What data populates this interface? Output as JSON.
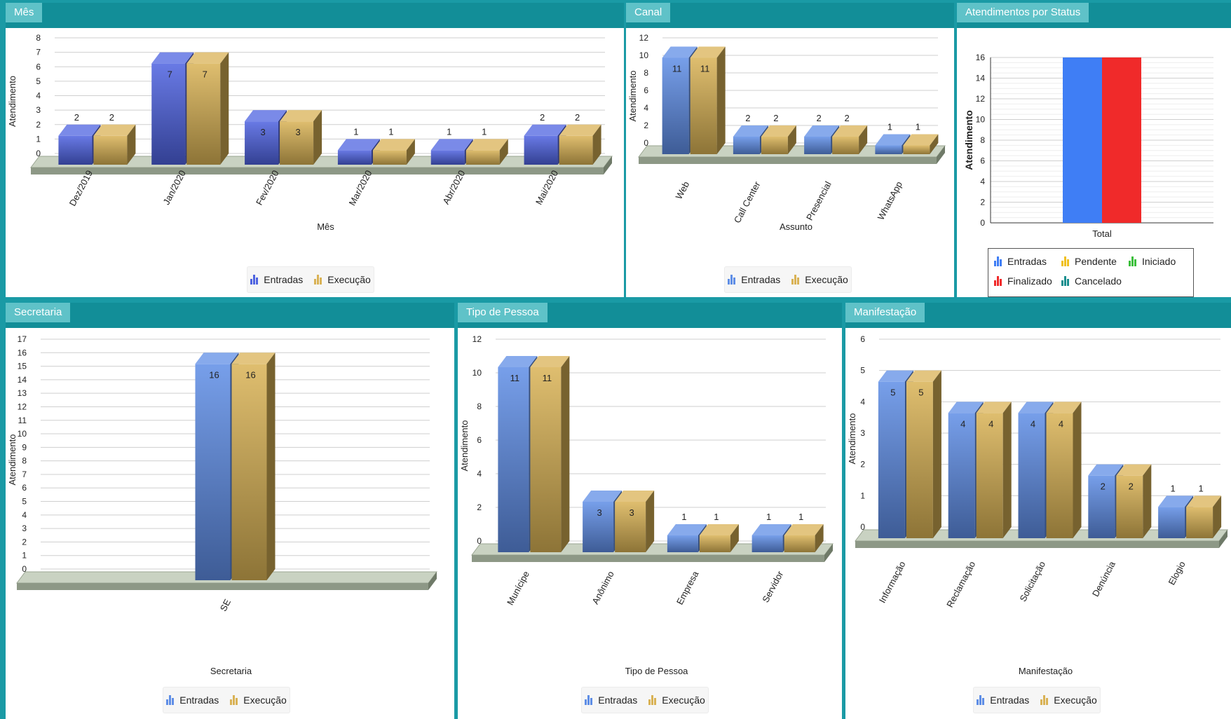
{
  "colors": {
    "entradas": "#4e63e0",
    "execucao": "#d9b255",
    "entradas_light": "#5f8ee6",
    "status_entradas": "#3f7ef5",
    "status_finalizado": "#f02a2a",
    "pendente": "#f0c020",
    "iniciado": "#3cbf3c",
    "cancelado": "#1a8f8f"
  },
  "panels": {
    "mes": {
      "title": "Mês"
    },
    "canal": {
      "title": "Canal"
    },
    "status": {
      "title": "Atendimentos por Status"
    },
    "secretaria": {
      "title": "Secretaria"
    },
    "tipo": {
      "title": "Tipo de Pessoa"
    },
    "manifestacao": {
      "title": "Manifestação"
    }
  },
  "legend": {
    "entradas": "Entradas",
    "execucao": "Execução"
  },
  "status_legend": {
    "entradas": "Entradas",
    "pendente": "Pendente",
    "iniciado": "Iniciado",
    "finalizado": "Finalizado",
    "cancelado": "Cancelado"
  },
  "chart_data": [
    {
      "id": "mes",
      "type": "bar",
      "title": "Mês",
      "xlabel": "Mês",
      "ylabel": "Atendimento",
      "ylim": [
        0,
        8
      ],
      "yticks": [
        0,
        1,
        2,
        3,
        4,
        5,
        6,
        7,
        8
      ],
      "categories": [
        "Dez/2019",
        "Jan/2020",
        "Fev/2020",
        "Mar/2020",
        "Abr/2020",
        "Mai/2020"
      ],
      "series": [
        {
          "name": "Entradas",
          "values": [
            2,
            7,
            3,
            1,
            1,
            2
          ]
        },
        {
          "name": "Execução",
          "values": [
            2,
            7,
            3,
            1,
            1,
            2
          ]
        }
      ],
      "legend": "bottom"
    },
    {
      "id": "canal",
      "type": "bar",
      "title": "Canal",
      "xlabel": "Assunto",
      "ylabel": "Atendimento",
      "ylim": [
        0,
        12
      ],
      "yticks": [
        0,
        2,
        4,
        6,
        8,
        10,
        12
      ],
      "categories": [
        "Web",
        "Call Center",
        "Presencial",
        "WhatsApp"
      ],
      "series": [
        {
          "name": "Entradas",
          "values": [
            11,
            2,
            2,
            1
          ]
        },
        {
          "name": "Execução",
          "values": [
            11,
            2,
            2,
            1
          ]
        }
      ],
      "legend": "bottom"
    },
    {
      "id": "status",
      "type": "bar",
      "title": "Atendimentos por Status",
      "xlabel": "",
      "ylabel": "Atendimento",
      "ylim": [
        0,
        16
      ],
      "yticks": [
        0,
        2,
        4,
        6,
        8,
        10,
        12,
        14,
        16
      ],
      "categories": [
        "Total"
      ],
      "series": [
        {
          "name": "Entradas",
          "values": [
            16
          ]
        },
        {
          "name": "Finalizado",
          "values": [
            16
          ]
        }
      ],
      "legend": "bottom"
    },
    {
      "id": "secretaria",
      "type": "bar",
      "title": "Secretaria",
      "xlabel": "Secretaria",
      "ylabel": "Atendimento",
      "ylim": [
        0,
        17
      ],
      "yticks": [
        0,
        1,
        2,
        3,
        4,
        5,
        6,
        7,
        8,
        9,
        10,
        11,
        12,
        13,
        14,
        15,
        16,
        17
      ],
      "categories": [
        "SE"
      ],
      "series": [
        {
          "name": "Entradas",
          "values": [
            16
          ]
        },
        {
          "name": "Execução",
          "values": [
            16
          ]
        }
      ],
      "legend": "bottom"
    },
    {
      "id": "tipo",
      "type": "bar",
      "title": "Tipo de Pessoa",
      "xlabel": "Tipo de Pessoa",
      "ylabel": "Atendimento",
      "ylim": [
        0,
        12
      ],
      "yticks": [
        0,
        2,
        4,
        6,
        8,
        10,
        12
      ],
      "categories": [
        "Munícipe",
        "Anônimo",
        "Empresa",
        "Servidor"
      ],
      "series": [
        {
          "name": "Entradas",
          "values": [
            11,
            3,
            1,
            1
          ]
        },
        {
          "name": "Execução",
          "values": [
            11,
            3,
            1,
            1
          ]
        }
      ],
      "legend": "bottom"
    },
    {
      "id": "manifestacao",
      "type": "bar",
      "title": "Manifestação",
      "xlabel": "Manifestação",
      "ylabel": "Atendimento",
      "ylim": [
        0,
        6
      ],
      "yticks": [
        0,
        1,
        2,
        3,
        4,
        5,
        6
      ],
      "categories": [
        "Informação",
        "Reclamação",
        "Solicitação",
        "Denúncia",
        "Elogio"
      ],
      "series": [
        {
          "name": "Entradas",
          "values": [
            5,
            4,
            4,
            2,
            1
          ]
        },
        {
          "name": "Execução",
          "values": [
            5,
            4,
            4,
            2,
            1
          ]
        }
      ],
      "legend": "bottom"
    }
  ]
}
